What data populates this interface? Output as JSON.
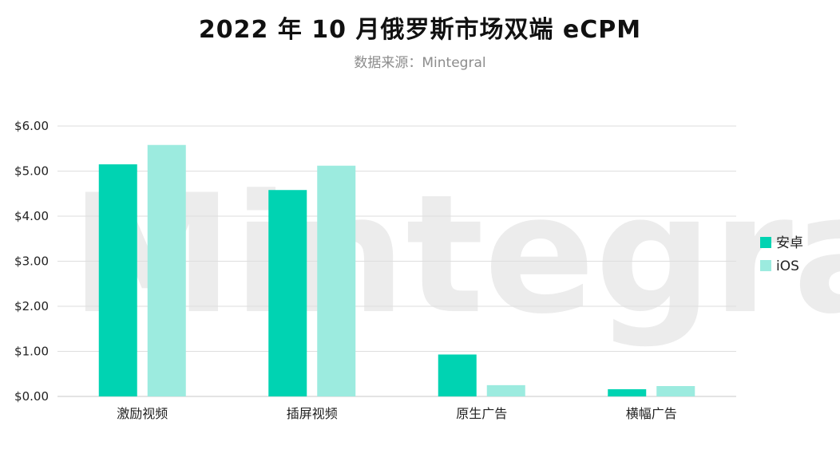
{
  "header": {
    "title": "2022 年 10 月俄罗斯市场双端 eCPM",
    "subtitle": "数据来源：Mintegral"
  },
  "watermark": "Mintegral",
  "chart_data": {
    "type": "bar",
    "categories": [
      "激励视频",
      "插屏视频",
      "原生广告",
      "横幅广告"
    ],
    "series": [
      {
        "name": "安卓",
        "color": "#00d3b2",
        "values": [
          5.15,
          4.58,
          0.93,
          0.16
        ]
      },
      {
        "name": "iOS",
        "color": "#9cebdf",
        "values": [
          5.58,
          5.12,
          0.25,
          0.23
        ]
      }
    ],
    "ylim": [
      0,
      6
    ],
    "yticks": [
      "$0.00",
      "$1.00",
      "$2.00",
      "$3.00",
      "$4.00",
      "$5.00",
      "$6.00"
    ],
    "grid": true,
    "legend_position": "right"
  }
}
